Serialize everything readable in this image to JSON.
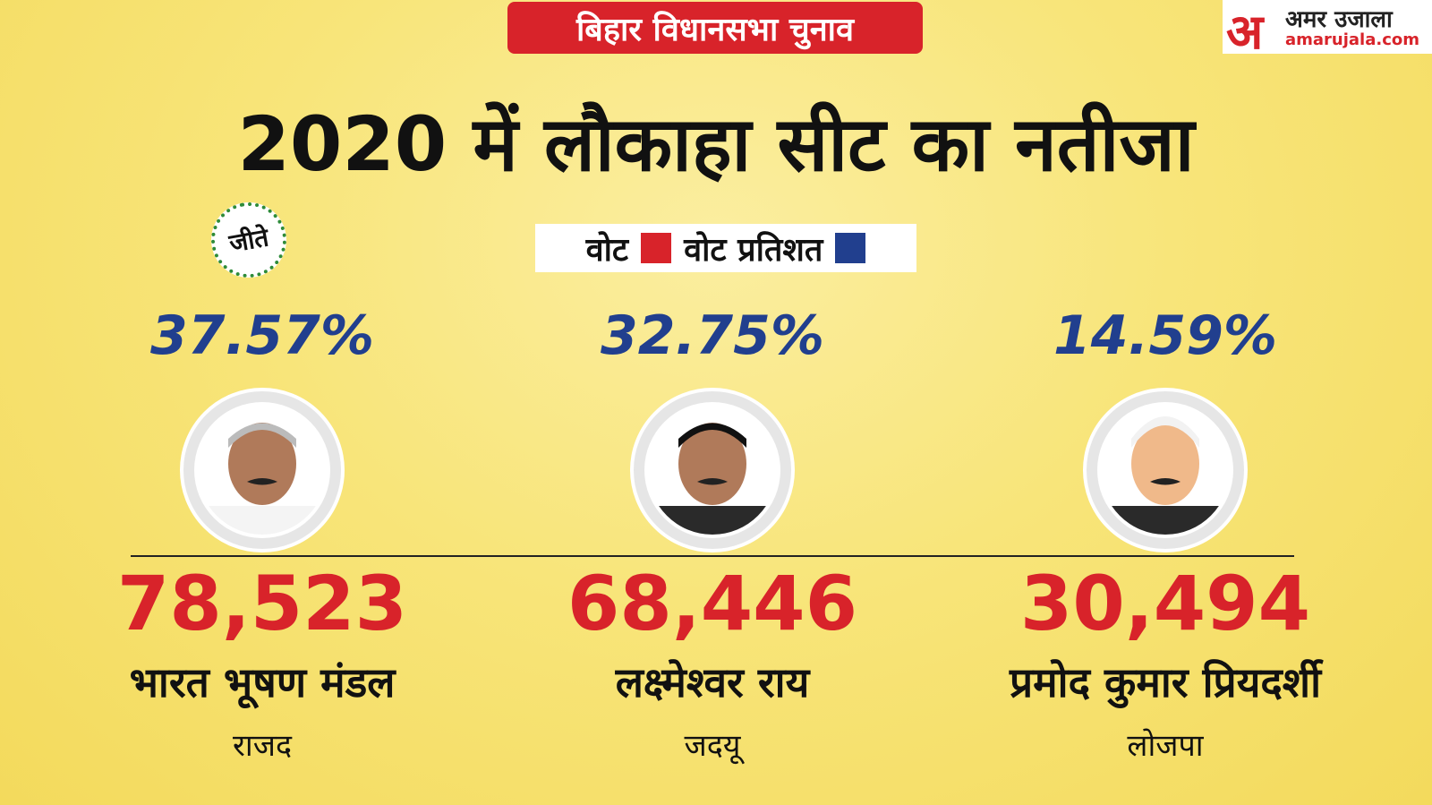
{
  "header": {
    "tag": "बिहार विधानसभा चुनाव",
    "logo_mark": "अ",
    "logo_name": "अमर उजाला",
    "logo_url": "amarujala.com",
    "title": "2020 में लौकाहा सीट का नतीजा"
  },
  "winner_badge": "जीते",
  "legend": [
    "वोट",
    "वोट प्रतिशत"
  ],
  "candidates": [
    {
      "percent": "37.57%",
      "votes": "78,523",
      "name": "भारत भूषण मंडल",
      "party": "राजद"
    },
    {
      "percent": "32.75%",
      "votes": "68,446",
      "name": "लक्ष्मेश्वर राय",
      "party": "जदयू"
    },
    {
      "percent": "14.59%",
      "votes": "30,494",
      "name": "प्रमोद कुमार प्रियदर्शी",
      "party": "लोजपा"
    }
  ]
}
